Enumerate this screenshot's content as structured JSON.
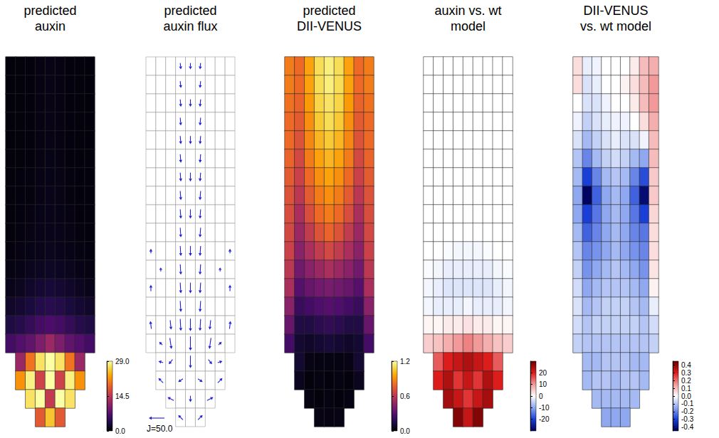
{
  "chart_data": [
    {
      "type": "heatmap",
      "title": "predicted auxin",
      "tick_labels": false,
      "colorbar": {
        "range": [
          0,
          29
        ],
        "ticks": [
          {
            "value": 0,
            "label": "0.0"
          },
          14.5,
          {
            "value": 29,
            "label": "29.0"
          }
        ]
      },
      "cells": [
        [
          0.4,
          0.5,
          0.6,
          0.8,
          0.9,
          0.8,
          0.6,
          0.5,
          0.4
        ],
        [
          0.4,
          0.5,
          0.6,
          0.8,
          0.9,
          0.8,
          0.6,
          0.5,
          0.4
        ],
        [
          0.4,
          0.5,
          0.6,
          0.8,
          0.9,
          0.8,
          0.6,
          0.5,
          0.4
        ],
        [
          0.4,
          0.5,
          0.6,
          0.8,
          0.9,
          0.8,
          0.6,
          0.5,
          0.4
        ],
        [
          0.4,
          0.5,
          0.6,
          0.8,
          0.9,
          0.8,
          0.6,
          0.5,
          0.4
        ],
        [
          0.5,
          0.5,
          0.6,
          0.8,
          1.0,
          0.8,
          0.6,
          0.5,
          0.5
        ],
        [
          0.5,
          0.6,
          0.7,
          0.9,
          1.0,
          0.9,
          0.7,
          0.6,
          0.5
        ],
        [
          0.5,
          0.6,
          0.7,
          0.9,
          1.1,
          0.9,
          0.7,
          0.6,
          0.5
        ],
        [
          0.5,
          0.6,
          0.8,
          1.0,
          1.1,
          1.0,
          0.8,
          0.6,
          0.5
        ],
        [
          0.5,
          0.7,
          0.9,
          1.1,
          1.2,
          1.1,
          0.9,
          0.7,
          0.5
        ],
        [
          0.6,
          0.8,
          1.0,
          1.2,
          1.3,
          1.2,
          1.0,
          0.8,
          0.6
        ],
        [
          0.8,
          1.0,
          1.3,
          1.6,
          1.8,
          1.6,
          1.3,
          1.0,
          0.8
        ],
        [
          1.2,
          1.5,
          2.0,
          2.5,
          2.8,
          2.5,
          2.0,
          1.5,
          1.2
        ],
        [
          2.0,
          2.5,
          3.0,
          3.8,
          4.2,
          3.8,
          3.0,
          2.5,
          2.0
        ],
        [
          3.5,
          4.0,
          5.0,
          6.0,
          6.5,
          6.0,
          5.0,
          4.0,
          3.5
        ],
        [
          6,
          7,
          8,
          10,
          12,
          10,
          8,
          7,
          6
        ],
        [
          null,
          12,
          20,
          27,
          29,
          27,
          20,
          12,
          null
        ],
        [
          null,
          22,
          28,
          16,
          29,
          16,
          28,
          22,
          null
        ],
        [
          null,
          null,
          27,
          29,
          15,
          29,
          27,
          null,
          null
        ],
        [
          null,
          null,
          null,
          18,
          25,
          18,
          null,
          null,
          null
        ]
      ]
    },
    {
      "type": "vector",
      "title": "predicted auxin flux",
      "tick_labels": false,
      "color": "#1f1fd6",
      "scale_arrow": {
        "value": 50.0,
        "label": "J=50.0"
      },
      "vectors": [
        [
          3,
          0,
          2,
          -20
        ],
        [
          5,
          0,
          -2,
          -20
        ],
        [
          4,
          0,
          0,
          -20
        ],
        [
          3,
          1,
          2,
          -22
        ],
        [
          5,
          1,
          -2,
          -22
        ],
        [
          3,
          2,
          2,
          -24
        ],
        [
          5,
          2,
          -2,
          -24
        ],
        [
          4,
          2,
          0,
          -24
        ],
        [
          3,
          3,
          2,
          -25
        ],
        [
          5,
          3,
          -2,
          -25
        ],
        [
          3,
          4,
          2,
          -26
        ],
        [
          5,
          4,
          -2,
          -26
        ],
        [
          4,
          4,
          0,
          -26
        ],
        [
          3,
          5,
          2,
          -27
        ],
        [
          5,
          5,
          -2,
          -27
        ],
        [
          3,
          6,
          2,
          -28
        ],
        [
          5,
          6,
          -2,
          -28
        ],
        [
          4,
          6,
          0,
          -28
        ],
        [
          3,
          7,
          2,
          -29
        ],
        [
          5,
          7,
          -2,
          -29
        ],
        [
          3,
          8,
          2,
          -30
        ],
        [
          5,
          8,
          -2,
          -30
        ],
        [
          4,
          8,
          0,
          -30
        ],
        [
          3,
          9,
          2,
          -31
        ],
        [
          5,
          9,
          -2,
          -31
        ],
        [
          3,
          10,
          2,
          -32
        ],
        [
          5,
          10,
          -2,
          -32
        ],
        [
          4,
          10,
          0,
          -32
        ],
        [
          3,
          11,
          2,
          -33
        ],
        [
          5,
          11,
          -2,
          -33
        ],
        [
          3,
          12,
          2,
          -34
        ],
        [
          5,
          12,
          -2,
          -34
        ],
        [
          4,
          12,
          0,
          -34
        ],
        [
          3,
          13,
          2,
          -35
        ],
        [
          5,
          13,
          -2,
          -35
        ],
        [
          0,
          10,
          0,
          15
        ],
        [
          8,
          10,
          0,
          15
        ],
        [
          1,
          11,
          0,
          12
        ],
        [
          7,
          11,
          0,
          12
        ],
        [
          0,
          12,
          0,
          20
        ],
        [
          8,
          12,
          0,
          20
        ],
        [
          0,
          14,
          -3,
          25
        ],
        [
          8,
          14,
          3,
          25
        ],
        [
          2,
          14,
          3,
          -30
        ],
        [
          3,
          14,
          2,
          -38
        ],
        [
          4,
          14,
          0,
          -40
        ],
        [
          5,
          14,
          -2,
          -38
        ],
        [
          6,
          14,
          -3,
          -30
        ],
        [
          1,
          15,
          -10,
          10
        ],
        [
          2,
          15,
          5,
          -35
        ],
        [
          4,
          15,
          0,
          -45
        ],
        [
          6,
          15,
          -5,
          -35
        ],
        [
          7,
          15,
          10,
          10
        ],
        [
          1,
          16,
          -15,
          5
        ],
        [
          2,
          16,
          -12,
          -15
        ],
        [
          4,
          16,
          0,
          -40
        ],
        [
          6,
          16,
          12,
          -15
        ],
        [
          7,
          16,
          15,
          5
        ],
        [
          1,
          17,
          -15,
          15
        ],
        [
          3,
          17,
          -15,
          -10
        ],
        [
          5,
          17,
          15,
          -10
        ],
        [
          7,
          17,
          15,
          15
        ],
        [
          2,
          18,
          -20,
          10
        ],
        [
          4,
          18,
          0,
          -20
        ],
        [
          6,
          18,
          20,
          10
        ],
        [
          3,
          19,
          -15,
          15
        ],
        [
          5,
          19,
          15,
          15
        ]
      ]
    },
    {
      "type": "heatmap",
      "title": "predicted DII-VENUS",
      "tick_labels": false,
      "colorbar": {
        "range": [
          0,
          1.2
        ],
        "ticks": [
          {
            "value": 0,
            "label": "0.0"
          },
          0.6,
          1.2
        ]
      },
      "cells": [
        [
          0.85,
          0.8,
          0.95,
          1.1,
          1.15,
          1.1,
          0.95,
          0.8,
          0.85
        ],
        [
          0.85,
          0.8,
          0.95,
          1.1,
          1.15,
          1.1,
          0.95,
          0.8,
          0.85
        ],
        [
          0.82,
          0.78,
          0.93,
          1.08,
          1.12,
          1.08,
          0.93,
          0.78,
          0.82
        ],
        [
          0.8,
          0.75,
          0.9,
          1.05,
          1.1,
          1.05,
          0.9,
          0.75,
          0.8
        ],
        [
          0.8,
          0.72,
          0.88,
          1.0,
          1.05,
          1.0,
          0.88,
          0.72,
          0.8
        ],
        [
          0.78,
          0.68,
          0.85,
          0.95,
          1.0,
          0.95,
          0.85,
          0.68,
          0.78
        ],
        [
          0.75,
          0.65,
          0.8,
          0.9,
          0.95,
          0.9,
          0.8,
          0.65,
          0.75
        ],
        [
          0.72,
          0.6,
          0.75,
          0.85,
          0.9,
          0.85,
          0.75,
          0.6,
          0.72
        ],
        [
          0.7,
          0.55,
          0.7,
          0.8,
          0.85,
          0.8,
          0.7,
          0.55,
          0.7
        ],
        [
          0.68,
          0.5,
          0.62,
          0.72,
          0.78,
          0.72,
          0.62,
          0.5,
          0.68
        ],
        [
          0.65,
          0.45,
          0.55,
          0.62,
          0.68,
          0.62,
          0.55,
          0.45,
          0.65
        ],
        [
          0.6,
          0.38,
          0.45,
          0.5,
          0.55,
          0.5,
          0.45,
          0.38,
          0.6
        ],
        [
          0.55,
          0.3,
          0.35,
          0.38,
          0.4,
          0.38,
          0.35,
          0.3,
          0.55
        ],
        [
          0.45,
          0.22,
          0.25,
          0.28,
          0.3,
          0.28,
          0.25,
          0.22,
          0.45
        ],
        [
          0.35,
          0.15,
          0.15,
          0.18,
          0.2,
          0.18,
          0.15,
          0.15,
          0.35
        ],
        [
          0.25,
          0.1,
          0.08,
          0.1,
          0.12,
          0.1,
          0.08,
          0.1,
          0.25
        ],
        [
          null,
          0.1,
          0.04,
          0.03,
          0.03,
          0.03,
          0.04,
          0.1,
          null
        ],
        [
          null,
          0.06,
          0.02,
          0.03,
          0.02,
          0.03,
          0.02,
          0.06,
          null
        ],
        [
          null,
          null,
          0.03,
          0.02,
          0.03,
          0.02,
          0.03,
          null,
          null
        ],
        [
          null,
          null,
          null,
          0.04,
          0.03,
          0.04,
          null,
          null,
          null
        ]
      ]
    },
    {
      "type": "heatmap",
      "title": "auxin vs. wt model",
      "tick_labels": false,
      "colorbar": {
        "range": [
          -30,
          30
        ],
        "ticks": [
          20,
          10,
          0,
          -10,
          -20
        ]
      },
      "cells": [
        [
          0,
          0,
          0,
          0,
          0,
          0,
          0,
          0,
          0
        ],
        [
          0,
          0,
          0,
          0,
          0,
          0,
          0,
          0,
          0
        ],
        [
          0,
          0,
          0,
          0,
          0,
          0,
          0,
          0,
          0
        ],
        [
          0,
          0,
          0,
          0,
          0,
          0,
          0,
          0,
          0
        ],
        [
          0,
          0,
          0,
          0,
          0,
          0,
          0,
          0,
          0
        ],
        [
          0,
          0,
          0,
          0,
          0,
          0,
          0,
          0,
          0
        ],
        [
          0,
          0,
          0,
          0,
          0,
          0,
          0,
          0,
          0
        ],
        [
          0,
          0,
          0,
          0,
          0,
          0,
          0,
          0,
          0
        ],
        [
          0,
          0,
          0,
          0,
          0,
          0,
          0,
          0,
          0
        ],
        [
          0,
          0,
          0,
          0,
          0,
          0,
          0,
          0,
          0
        ],
        [
          0,
          0,
          -0.5,
          -1,
          -1,
          -1,
          -0.5,
          0,
          0
        ],
        [
          -0.5,
          -1,
          -2,
          -2,
          -2,
          -2,
          -2,
          -1,
          -0.5
        ],
        [
          -1,
          -2,
          -3,
          -3,
          -3,
          -3,
          -3,
          -2,
          -1
        ],
        [
          -1,
          -2,
          -2,
          -2,
          -1,
          -2,
          -2,
          -2,
          -1
        ],
        [
          1,
          1,
          2,
          2,
          3,
          2,
          2,
          1,
          1
        ],
        [
          5,
          6,
          8,
          10,
          12,
          10,
          8,
          6,
          5
        ],
        [
          null,
          15,
          20,
          22,
          24,
          22,
          20,
          15,
          null
        ],
        [
          null,
          20,
          24,
          18,
          22,
          18,
          24,
          20,
          null
        ],
        [
          null,
          null,
          25,
          22,
          18,
          22,
          25,
          null,
          null
        ],
        [
          null,
          null,
          null,
          28,
          22,
          28,
          null,
          null,
          null
        ]
      ]
    },
    {
      "type": "heatmap",
      "title": "DII-VENUS vs. wt model",
      "tick_labels": false,
      "colorbar": {
        "range": [
          -0.45,
          0.45
        ],
        "ticks": [
          0.4,
          0.3,
          0.2,
          0.1,
          {
            "value": 0,
            "label": "0.0"
          },
          -0.1,
          -0.2,
          -0.3,
          -0.4
        ]
      },
      "cells": [
        [
          0.05,
          -0.03,
          -0.02,
          0,
          0,
          0,
          0.03,
          0.1,
          0.12
        ],
        [
          0.05,
          -0.05,
          -0.03,
          0,
          0,
          0.02,
          0.05,
          0.1,
          0.15
        ],
        [
          0,
          -0.05,
          -0.05,
          -0.02,
          0,
          0,
          0.03,
          0.1,
          0.15
        ],
        [
          -0.02,
          -0.08,
          -0.05,
          -0.03,
          -0.02,
          -0.02,
          0,
          0.05,
          0.12
        ],
        [
          -0.05,
          -0.12,
          -0.08,
          -0.05,
          -0.03,
          -0.05,
          -0.05,
          -0.02,
          0.1
        ],
        [
          -0.1,
          -0.2,
          -0.12,
          -0.08,
          -0.06,
          -0.08,
          -0.12,
          -0.15,
          0.1
        ],
        [
          -0.12,
          -0.3,
          -0.2,
          -0.12,
          -0.1,
          -0.12,
          -0.2,
          -0.28,
          0.08
        ],
        [
          -0.15,
          -0.44,
          -0.25,
          -0.15,
          -0.12,
          -0.15,
          -0.25,
          -0.42,
          0.08
        ],
        [
          -0.15,
          -0.3,
          -0.22,
          -0.15,
          -0.12,
          -0.15,
          -0.22,
          -0.3,
          0.06
        ],
        [
          -0.12,
          -0.25,
          -0.2,
          -0.15,
          -0.12,
          -0.15,
          -0.2,
          -0.22,
          0.05
        ],
        [
          -0.1,
          -0.2,
          -0.18,
          -0.15,
          -0.12,
          -0.15,
          -0.18,
          -0.2,
          0.05
        ],
        [
          -0.08,
          -0.18,
          -0.15,
          -0.12,
          -0.1,
          -0.12,
          -0.15,
          -0.18,
          0.04
        ],
        [
          -0.06,
          -0.15,
          -0.12,
          -0.1,
          -0.1,
          -0.1,
          -0.12,
          -0.15,
          0.02
        ],
        [
          -0.05,
          -0.12,
          -0.1,
          -0.08,
          -0.08,
          -0.08,
          -0.1,
          -0.12,
          -0.03
        ],
        [
          -0.06,
          -0.1,
          -0.08,
          -0.08,
          -0.08,
          -0.08,
          -0.08,
          -0.1,
          -0.06
        ],
        [
          -0.08,
          -0.1,
          -0.1,
          -0.1,
          -0.1,
          -0.1,
          -0.1,
          -0.1,
          -0.08
        ],
        [
          null,
          -0.12,
          -0.12,
          -0.1,
          -0.1,
          -0.1,
          -0.12,
          -0.12,
          null
        ],
        [
          null,
          -0.12,
          -0.1,
          -0.1,
          -0.12,
          -0.1,
          -0.1,
          -0.12,
          null
        ],
        [
          null,
          null,
          -0.12,
          -0.12,
          -0.12,
          -0.12,
          -0.12,
          null,
          null
        ],
        [
          null,
          null,
          null,
          -0.15,
          -0.15,
          -0.15,
          null,
          null,
          null
        ]
      ]
    }
  ]
}
